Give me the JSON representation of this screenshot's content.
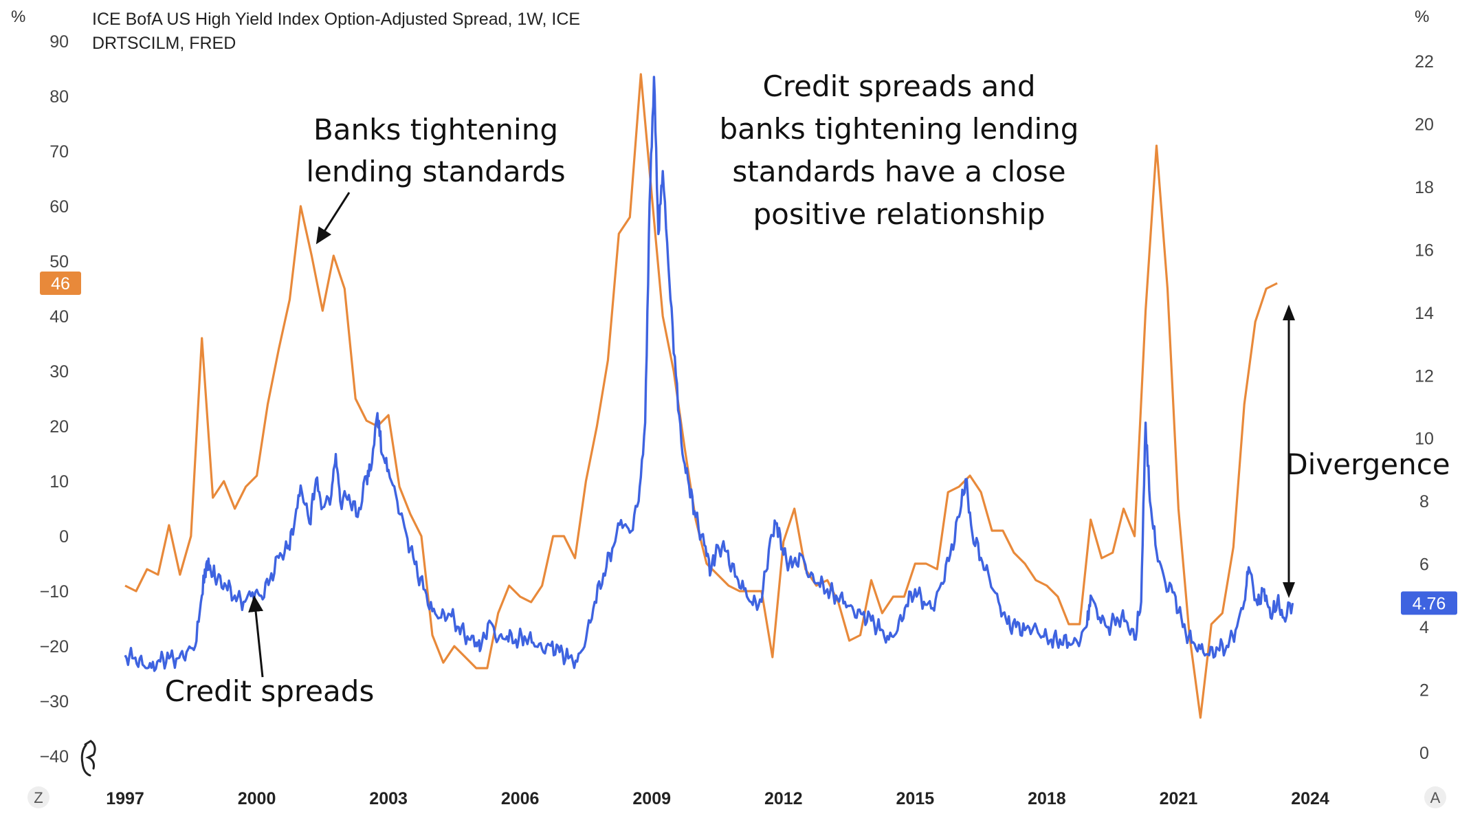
{
  "chart_data": {
    "type": "line",
    "title_line1": "ICE BofA US High Yield Index Option-Adjusted Spread, 1W, ICE",
    "title_line2": "DRTSCILM, FRED",
    "left_axis": {
      "unit": "%",
      "ticks": [
        90,
        80,
        70,
        60,
        50,
        40,
        30,
        20,
        10,
        0,
        -10,
        -20,
        -30,
        -40
      ],
      "ylim": [
        -40,
        90
      ]
    },
    "right_axis": {
      "unit": "%",
      "ticks": [
        22,
        20,
        18,
        16,
        14,
        12,
        10,
        8,
        6,
        4,
        2,
        0
      ],
      "ylim": [
        0,
        22
      ]
    },
    "x_ticks": [
      "1997",
      "2000",
      "2003",
      "2006",
      "2009",
      "2012",
      "2015",
      "2018",
      "2021",
      "2024"
    ],
    "xlim": [
      1996.5,
      2025.5
    ],
    "series": [
      {
        "color": "#E8893A",
        "axis": "left",
        "last_value_label": "46",
        "points": [
          [
            1997.0,
            -9
          ],
          [
            1997.25,
            -10
          ],
          [
            1997.5,
            -6
          ],
          [
            1997.75,
            -7
          ],
          [
            1998.0,
            2
          ],
          [
            1998.25,
            -7
          ],
          [
            1998.5,
            0
          ],
          [
            1998.75,
            36
          ],
          [
            1999.0,
            7
          ],
          [
            1999.25,
            10
          ],
          [
            1999.5,
            5
          ],
          [
            1999.75,
            9
          ],
          [
            2000.0,
            11
          ],
          [
            2000.25,
            24
          ],
          [
            2000.5,
            34
          ],
          [
            2000.75,
            43
          ],
          [
            2001.0,
            60
          ],
          [
            2001.25,
            51
          ],
          [
            2001.5,
            41
          ],
          [
            2001.75,
            51
          ],
          [
            2002.0,
            45
          ],
          [
            2002.25,
            25
          ],
          [
            2002.5,
            21
          ],
          [
            2002.75,
            20
          ],
          [
            2003.0,
            22
          ],
          [
            2003.25,
            9
          ],
          [
            2003.5,
            4
          ],
          [
            2003.75,
            0
          ],
          [
            2004.0,
            -18
          ],
          [
            2004.25,
            -23
          ],
          [
            2004.5,
            -20
          ],
          [
            2004.75,
            -22
          ],
          [
            2005.0,
            -24
          ],
          [
            2005.25,
            -24
          ],
          [
            2005.5,
            -14
          ],
          [
            2005.75,
            -9
          ],
          [
            2006.0,
            -11
          ],
          [
            2006.25,
            -12
          ],
          [
            2006.5,
            -9
          ],
          [
            2006.75,
            0
          ],
          [
            2007.0,
            0
          ],
          [
            2007.25,
            -4
          ],
          [
            2007.5,
            10
          ],
          [
            2007.75,
            20
          ],
          [
            2008.0,
            32
          ],
          [
            2008.25,
            55
          ],
          [
            2008.5,
            58
          ],
          [
            2008.75,
            84
          ],
          [
            2009.0,
            62
          ],
          [
            2009.25,
            40
          ],
          [
            2009.5,
            30
          ],
          [
            2009.75,
            16
          ],
          [
            2010.0,
            3
          ],
          [
            2010.25,
            -5
          ],
          [
            2010.5,
            -7
          ],
          [
            2010.75,
            -9
          ],
          [
            2011.0,
            -10
          ],
          [
            2011.25,
            -10
          ],
          [
            2011.5,
            -10
          ],
          [
            2011.75,
            -22
          ],
          [
            2012.0,
            -1
          ],
          [
            2012.25,
            5
          ],
          [
            2012.5,
            -6
          ],
          [
            2012.75,
            -9
          ],
          [
            2013.0,
            -8
          ],
          [
            2013.25,
            -12
          ],
          [
            2013.5,
            -19
          ],
          [
            2013.75,
            -18
          ],
          [
            2014.0,
            -8
          ],
          [
            2014.25,
            -14
          ],
          [
            2014.5,
            -11
          ],
          [
            2014.75,
            -11
          ],
          [
            2015.0,
            -5
          ],
          [
            2015.25,
            -5
          ],
          [
            2015.5,
            -6
          ],
          [
            2015.75,
            8
          ],
          [
            2016.0,
            9
          ],
          [
            2016.25,
            11
          ],
          [
            2016.5,
            8
          ],
          [
            2016.75,
            1
          ],
          [
            2017.0,
            1
          ],
          [
            2017.25,
            -3
          ],
          [
            2017.5,
            -5
          ],
          [
            2017.75,
            -8
          ],
          [
            2018.0,
            -9
          ],
          [
            2018.25,
            -11
          ],
          [
            2018.5,
            -16
          ],
          [
            2018.75,
            -16
          ],
          [
            2019.0,
            3
          ],
          [
            2019.25,
            -4
          ],
          [
            2019.5,
            -3
          ],
          [
            2019.75,
            5
          ],
          [
            2020.0,
            0
          ],
          [
            2020.25,
            41
          ],
          [
            2020.5,
            71
          ],
          [
            2020.75,
            45
          ],
          [
            2021.0,
            5
          ],
          [
            2021.25,
            -18
          ],
          [
            2021.5,
            -33
          ],
          [
            2021.75,
            -16
          ],
          [
            2022.0,
            -14
          ],
          [
            2022.25,
            -2
          ],
          [
            2022.5,
            24
          ],
          [
            2022.75,
            39
          ],
          [
            2023.0,
            45
          ],
          [
            2023.25,
            46
          ]
        ]
      },
      {
        "color": "#3E63E0",
        "axis": "right",
        "last_value_label": "4.76",
        "points": [
          [
            1997.0,
            3.1
          ],
          [
            1997.2,
            3.0
          ],
          [
            1997.4,
            2.8
          ],
          [
            1997.6,
            2.7
          ],
          [
            1997.8,
            2.9
          ],
          [
            1998.0,
            3.0
          ],
          [
            1998.2,
            3.0
          ],
          [
            1998.4,
            3.2
          ],
          [
            1998.6,
            3.4
          ],
          [
            1998.75,
            5.0
          ],
          [
            1998.85,
            6.0
          ],
          [
            1998.95,
            5.8
          ],
          [
            1999.1,
            5.5
          ],
          [
            1999.3,
            5.3
          ],
          [
            1999.5,
            5.0
          ],
          [
            1999.7,
            4.8
          ],
          [
            1999.9,
            5.1
          ],
          [
            2000.1,
            5.0
          ],
          [
            2000.3,
            5.5
          ],
          [
            2000.5,
            6.2
          ],
          [
            2000.7,
            6.5
          ],
          [
            2000.85,
            7.2
          ],
          [
            2001.0,
            8.5
          ],
          [
            2001.2,
            7.3
          ],
          [
            2001.35,
            8.7
          ],
          [
            2001.5,
            7.8
          ],
          [
            2001.7,
            8.2
          ],
          [
            2001.8,
            9.5
          ],
          [
            2001.9,
            8.0
          ],
          [
            2002.1,
            8.2
          ],
          [
            2002.3,
            7.5
          ],
          [
            2002.5,
            8.8
          ],
          [
            2002.6,
            9.0
          ],
          [
            2002.75,
            10.8
          ],
          [
            2002.85,
            9.5
          ],
          [
            2003.0,
            9.0
          ],
          [
            2003.2,
            8.0
          ],
          [
            2003.4,
            7.0
          ],
          [
            2003.6,
            6.0
          ],
          [
            2003.8,
            5.2
          ],
          [
            2004.0,
            4.5
          ],
          [
            2004.2,
            4.3
          ],
          [
            2004.4,
            4.4
          ],
          [
            2004.6,
            4.0
          ],
          [
            2004.8,
            3.7
          ],
          [
            2005.0,
            3.5
          ],
          [
            2005.1,
            3.3
          ],
          [
            2005.3,
            4.2
          ],
          [
            2005.5,
            3.6
          ],
          [
            2005.7,
            3.7
          ],
          [
            2005.9,
            3.6
          ],
          [
            2006.1,
            3.7
          ],
          [
            2006.3,
            3.5
          ],
          [
            2006.5,
            3.3
          ],
          [
            2006.7,
            3.4
          ],
          [
            2006.9,
            3.2
          ],
          [
            2007.1,
            3.0
          ],
          [
            2007.3,
            2.9
          ],
          [
            2007.5,
            3.6
          ],
          [
            2007.7,
            4.8
          ],
          [
            2007.9,
            5.7
          ],
          [
            2008.1,
            6.5
          ],
          [
            2008.3,
            7.4
          ],
          [
            2008.5,
            7.0
          ],
          [
            2008.7,
            8.0
          ],
          [
            2008.85,
            10.5
          ],
          [
            2008.95,
            17.5
          ],
          [
            2009.05,
            21.5
          ],
          [
            2009.15,
            16.5
          ],
          [
            2009.25,
            18.5
          ],
          [
            2009.4,
            15.0
          ],
          [
            2009.55,
            12.0
          ],
          [
            2009.7,
            9.5
          ],
          [
            2009.85,
            8.5
          ],
          [
            2010.0,
            7.5
          ],
          [
            2010.2,
            6.6
          ],
          [
            2010.35,
            5.8
          ],
          [
            2010.5,
            6.6
          ],
          [
            2010.7,
            6.4
          ],
          [
            2010.9,
            5.6
          ],
          [
            2011.1,
            5.2
          ],
          [
            2011.3,
            4.7
          ],
          [
            2011.5,
            4.8
          ],
          [
            2011.7,
            6.8
          ],
          [
            2011.85,
            7.3
          ],
          [
            2012.0,
            6.3
          ],
          [
            2012.2,
            5.9
          ],
          [
            2012.4,
            6.3
          ],
          [
            2012.6,
            5.6
          ],
          [
            2012.8,
            5.4
          ],
          [
            2013.0,
            5.2
          ],
          [
            2013.2,
            5.0
          ],
          [
            2013.4,
            4.8
          ],
          [
            2013.6,
            4.5
          ],
          [
            2013.8,
            4.4
          ],
          [
            2014.0,
            4.2
          ],
          [
            2014.2,
            3.9
          ],
          [
            2014.4,
            3.6
          ],
          [
            2014.6,
            3.9
          ],
          [
            2014.8,
            4.7
          ],
          [
            2015.0,
            5.2
          ],
          [
            2015.2,
            4.8
          ],
          [
            2015.4,
            4.6
          ],
          [
            2015.6,
            5.4
          ],
          [
            2015.8,
            6.3
          ],
          [
            2016.0,
            7.5
          ],
          [
            2016.15,
            8.7
          ],
          [
            2016.3,
            7.0
          ],
          [
            2016.5,
            6.2
          ],
          [
            2016.7,
            5.5
          ],
          [
            2016.9,
            4.8
          ],
          [
            2017.1,
            4.1
          ],
          [
            2017.3,
            4.0
          ],
          [
            2017.5,
            3.9
          ],
          [
            2017.7,
            4.0
          ],
          [
            2017.9,
            3.7
          ],
          [
            2018.1,
            3.6
          ],
          [
            2018.3,
            3.6
          ],
          [
            2018.5,
            3.5
          ],
          [
            2018.7,
            3.5
          ],
          [
            2018.9,
            4.0
          ],
          [
            2019.0,
            5.0
          ],
          [
            2019.2,
            4.3
          ],
          [
            2019.4,
            4.0
          ],
          [
            2019.6,
            4.3
          ],
          [
            2019.8,
            4.2
          ],
          [
            2020.0,
            3.6
          ],
          [
            2020.15,
            4.8
          ],
          [
            2020.25,
            10.5
          ],
          [
            2020.35,
            8.0
          ],
          [
            2020.5,
            6.4
          ],
          [
            2020.7,
            5.4
          ],
          [
            2020.9,
            5.1
          ],
          [
            2021.1,
            4.0
          ],
          [
            2021.3,
            3.5
          ],
          [
            2021.5,
            3.3
          ],
          [
            2021.7,
            3.1
          ],
          [
            2021.9,
            3.3
          ],
          [
            2022.1,
            3.4
          ],
          [
            2022.3,
            3.9
          ],
          [
            2022.5,
            4.8
          ],
          [
            2022.6,
            5.9
          ],
          [
            2022.8,
            4.7
          ],
          [
            2022.95,
            5.2
          ],
          [
            2023.1,
            4.3
          ],
          [
            2023.25,
            4.8
          ],
          [
            2023.4,
            4.3
          ],
          [
            2023.6,
            4.76
          ]
        ]
      }
    ],
    "annotations": {
      "banks_label": [
        "Banks tightening",
        "lending standards"
      ],
      "credit_label": "Credit spreads",
      "relationship_label": [
        "Credit spreads and",
        "banks tightening lending",
        "standards have a close",
        "positive relationship"
      ],
      "divergence_label": "Divergence"
    }
  },
  "ui": {
    "zoom_left_button": "Z",
    "auto_scale_button": "A"
  }
}
